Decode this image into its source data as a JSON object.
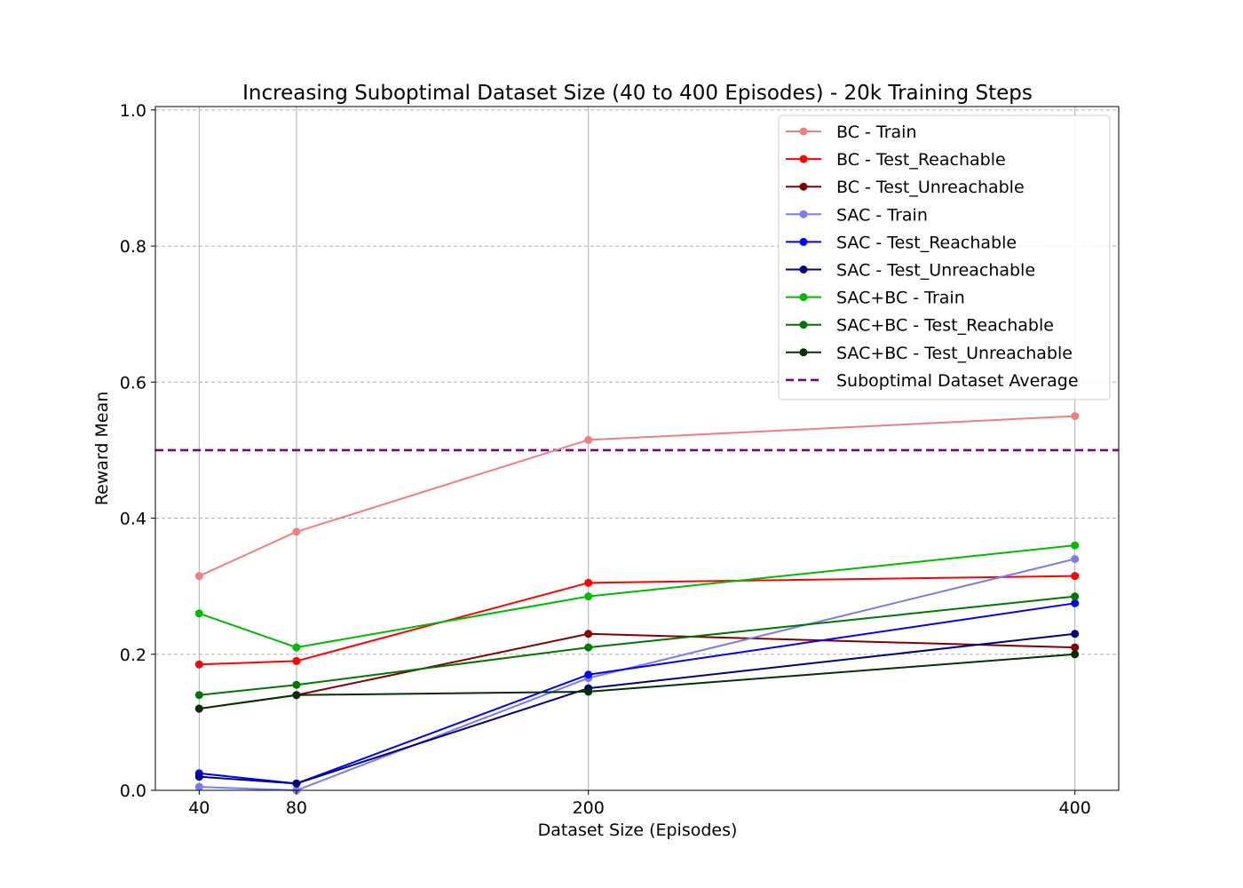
{
  "chart_data": {
    "type": "line",
    "title": "Increasing Suboptimal Dataset Size (40 to 400 Episodes) - 20k Training Steps",
    "xlabel": "Dataset Size (Episodes)",
    "ylabel": "Reward Mean",
    "x": [
      40,
      80,
      200,
      400
    ],
    "x_ticks": [
      "40",
      "80",
      "200",
      "400"
    ],
    "xlim": [
      22,
      418
    ],
    "ylim": [
      0.0,
      1.0
    ],
    "y_ticks": [
      "0.0",
      "0.2",
      "0.4",
      "0.6",
      "0.8",
      "1.0"
    ],
    "y_tick_values": [
      0.0,
      0.2,
      0.4,
      0.6,
      0.8,
      1.0
    ],
    "grid": "on",
    "legend_position": "top-right",
    "series": [
      {
        "name": "BC - Train",
        "color": "#f08080",
        "values": [
          0.315,
          0.38,
          0.515,
          0.55
        ]
      },
      {
        "name": "BC - Test_Reachable",
        "color": "#ff0000",
        "values": [
          0.185,
          0.19,
          0.305,
          0.315
        ]
      },
      {
        "name": "BC - Test_Unreachable",
        "color": "#800000",
        "values": [
          0.12,
          0.14,
          0.23,
          0.21
        ]
      },
      {
        "name": "SAC - Train",
        "color": "#7b7bf0",
        "values": [
          0.005,
          0.0,
          0.165,
          0.34
        ]
      },
      {
        "name": "SAC - Test_Reachable",
        "color": "#0000ff",
        "values": [
          0.025,
          0.01,
          0.17,
          0.275
        ]
      },
      {
        "name": "SAC - Test_Unreachable",
        "color": "#000080",
        "values": [
          0.02,
          0.01,
          0.15,
          0.23
        ]
      },
      {
        "name": "SAC+BC - Train",
        "color": "#00bb00",
        "values": [
          0.26,
          0.21,
          0.285,
          0.36
        ]
      },
      {
        "name": "SAC+BC - Test_Reachable",
        "color": "#007700",
        "values": [
          0.14,
          0.155,
          0.21,
          0.285
        ]
      },
      {
        "name": "SAC+BC - Test_Unreachable",
        "color": "#003300",
        "values": [
          0.12,
          0.14,
          0.145,
          0.2
        ]
      }
    ],
    "reference_line": {
      "name": "Suboptimal Dataset Average",
      "color": "#800080",
      "value": 0.5
    }
  }
}
